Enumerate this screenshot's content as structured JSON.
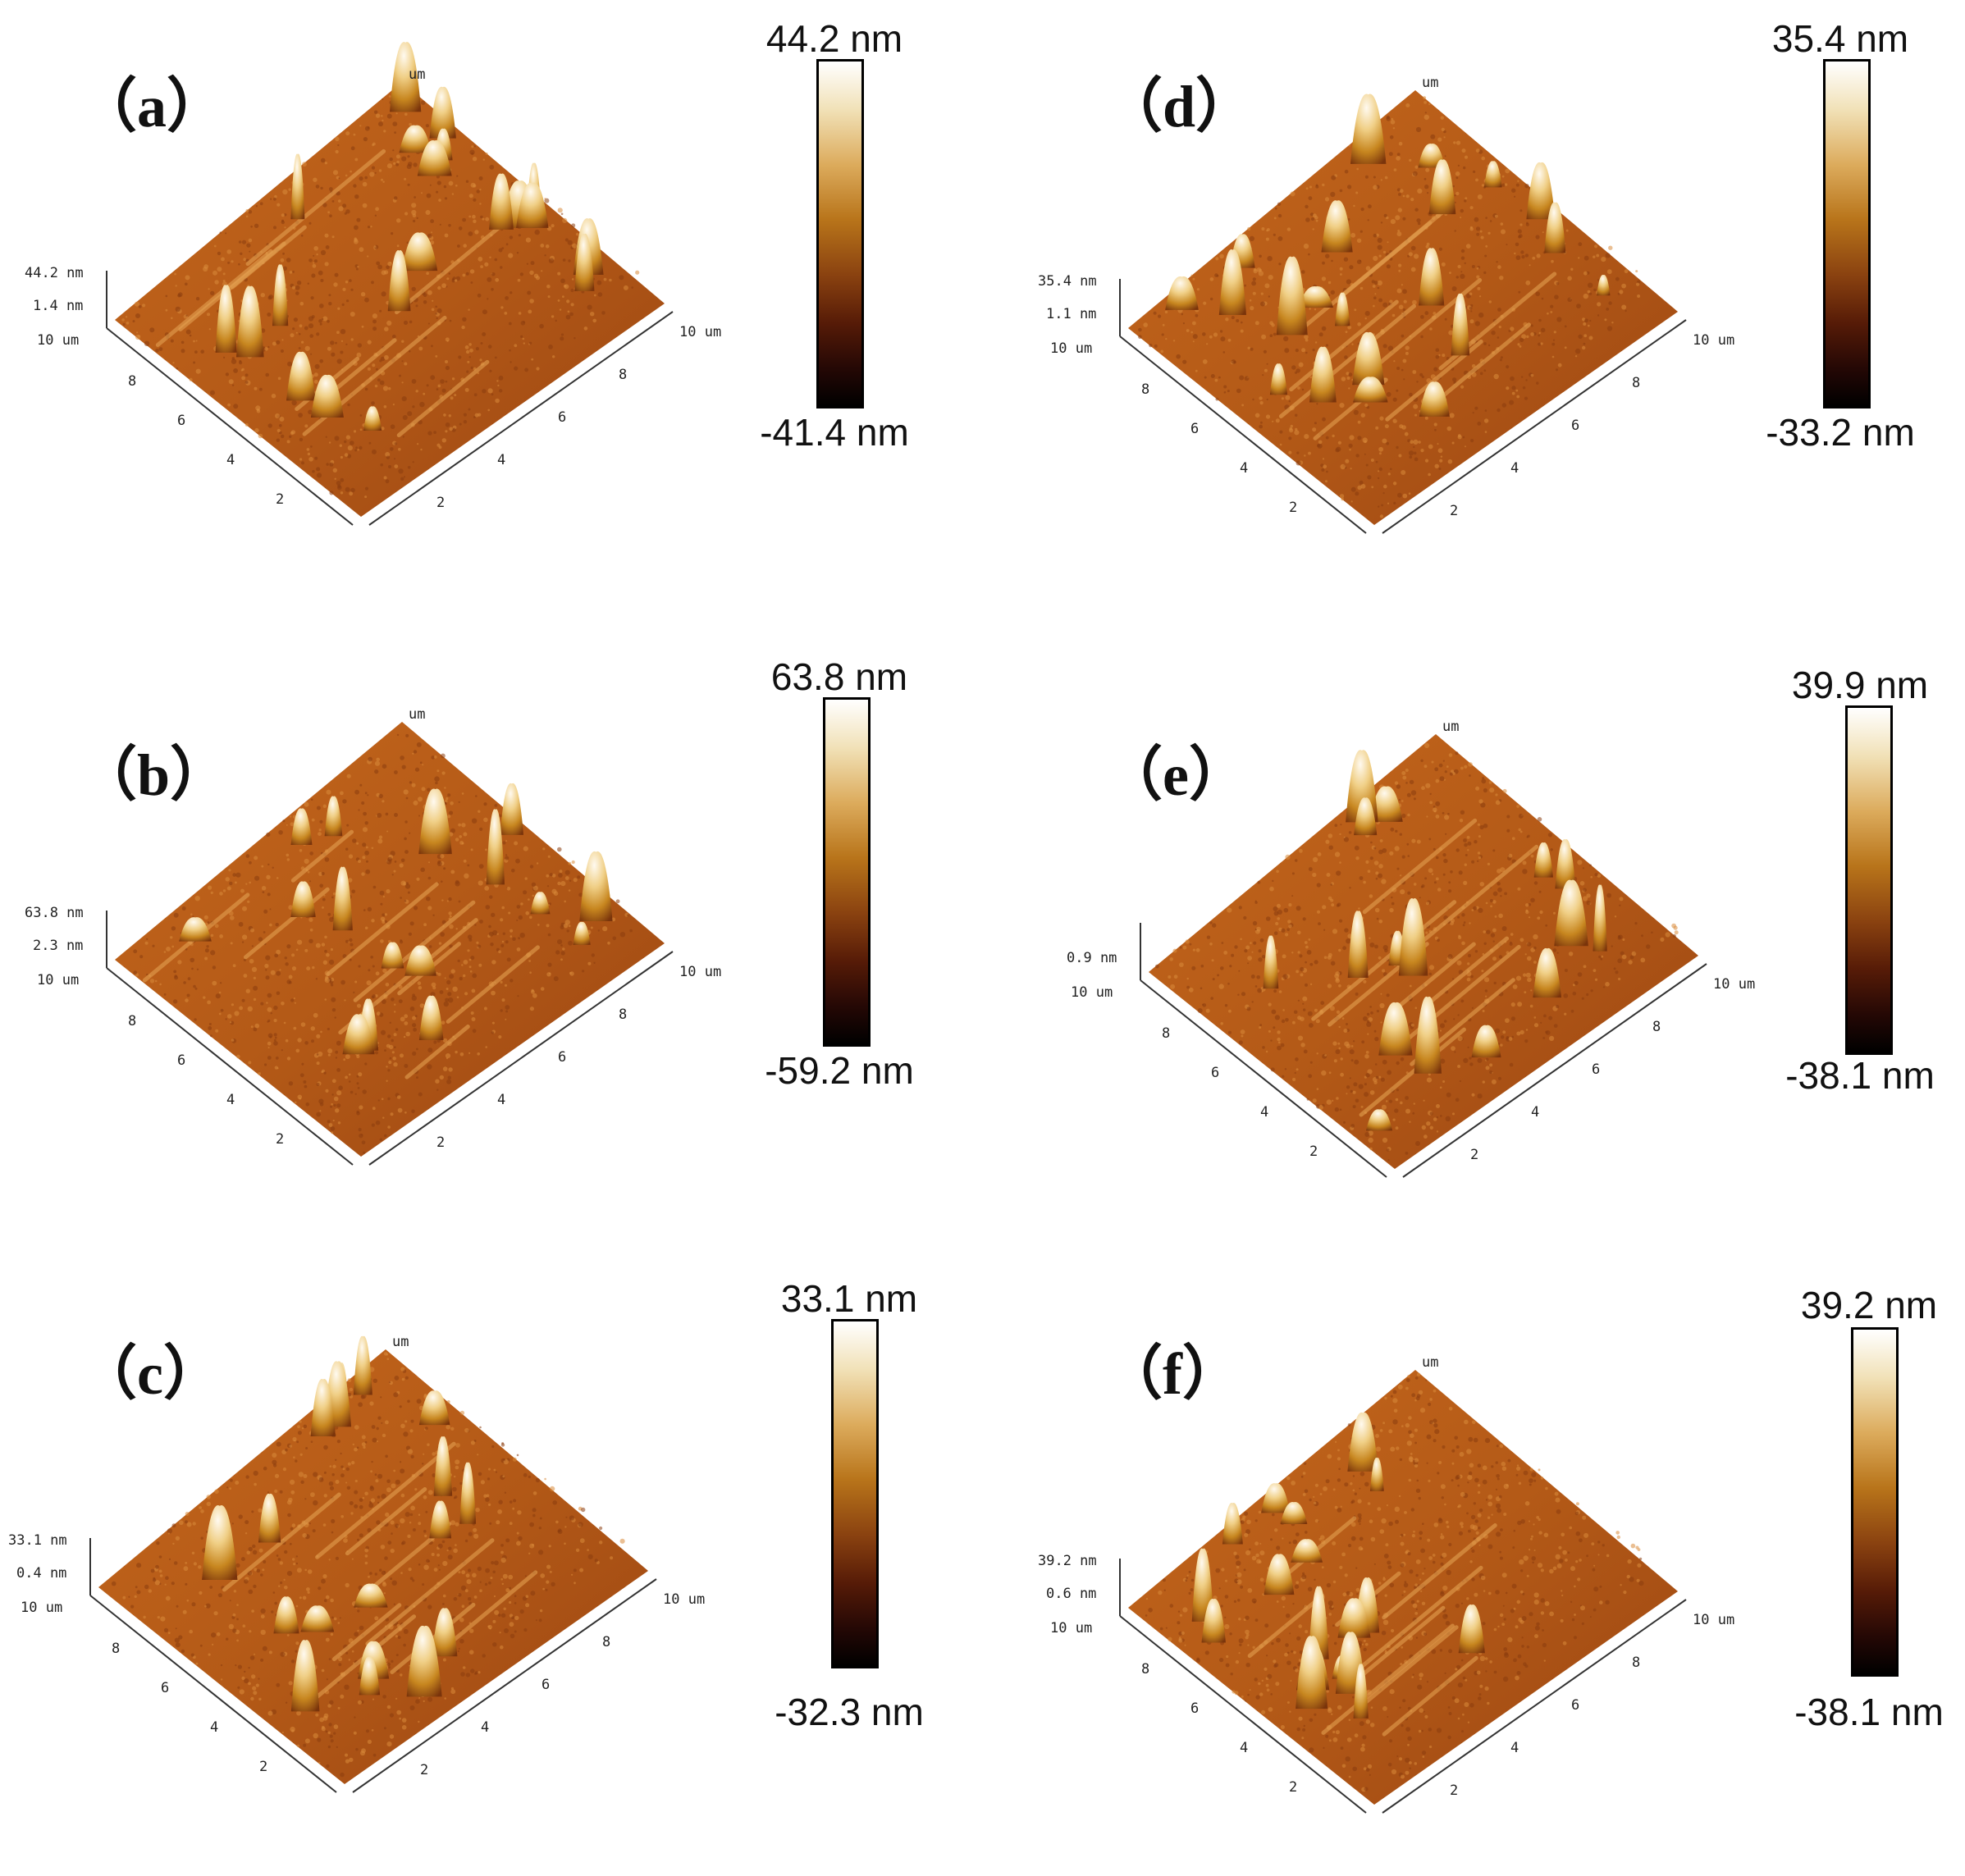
{
  "figure": {
    "panels": [
      {
        "id": "a",
        "label": "（a）",
        "colorbar": {
          "max": "44.2 nm",
          "min": "-41.4 nm"
        },
        "z_axis": {
          "top": "44.2 nm",
          "mid": "1.4 nm",
          "bottom": "10 um"
        },
        "x_ticks": [
          "2",
          "4",
          "6",
          "8",
          "10 um"
        ],
        "y_ticks": [
          "2",
          "4",
          "6",
          "8"
        ],
        "back_label": "um"
      },
      {
        "id": "b",
        "label": "（b）",
        "colorbar": {
          "max": "63.8 nm",
          "min": "-59.2 nm"
        },
        "z_axis": {
          "top": "63.8 nm",
          "mid": "2.3 nm",
          "bottom": "10 um"
        },
        "x_ticks": [
          "2",
          "4",
          "6",
          "8",
          "10 um"
        ],
        "y_ticks": [
          "2",
          "4",
          "6",
          "8"
        ],
        "back_label": "um"
      },
      {
        "id": "c",
        "label": "（c）",
        "colorbar": {
          "max": "33.1 nm",
          "min": "-32.3 nm"
        },
        "z_axis": {
          "top": "33.1 nm",
          "mid": "0.4 nm",
          "bottom": "10 um"
        },
        "x_ticks": [
          "2",
          "4",
          "6",
          "8",
          "10 um"
        ],
        "y_ticks": [
          "2",
          "4",
          "6",
          "8"
        ],
        "back_label": "um"
      },
      {
        "id": "d",
        "label": "（d）",
        "colorbar": {
          "max": "35.4 nm",
          "min": "-33.2 nm"
        },
        "z_axis": {
          "top": "35.4 nm",
          "mid": "1.1 nm",
          "bottom": "10 um"
        },
        "x_ticks": [
          "2",
          "4",
          "6",
          "8",
          "10 um"
        ],
        "y_ticks": [
          "2",
          "4",
          "6",
          "8"
        ],
        "back_label": "um"
      },
      {
        "id": "e",
        "label": "（e）",
        "colorbar": {
          "max": "39.9 nm",
          "min": "-38.1 nm"
        },
        "z_axis": {
          "top": "",
          "mid": "0.9 nm",
          "bottom": "10 um"
        },
        "x_ticks": [
          "2",
          "4",
          "6",
          "8",
          "10 um"
        ],
        "y_ticks": [
          "2",
          "4",
          "6",
          "8"
        ],
        "back_label": "um"
      },
      {
        "id": "f",
        "label": "（f）",
        "colorbar": {
          "max": "39.2 nm",
          "min": "-38.1 nm"
        },
        "z_axis": {
          "top": "39.2 nm",
          "mid": "0.6 nm",
          "bottom": "10 um"
        },
        "x_ticks": [
          "2",
          "4",
          "6",
          "8",
          "10 um"
        ],
        "y_ticks": [
          "2",
          "4",
          "6",
          "8"
        ],
        "back_label": "um"
      }
    ]
  }
}
